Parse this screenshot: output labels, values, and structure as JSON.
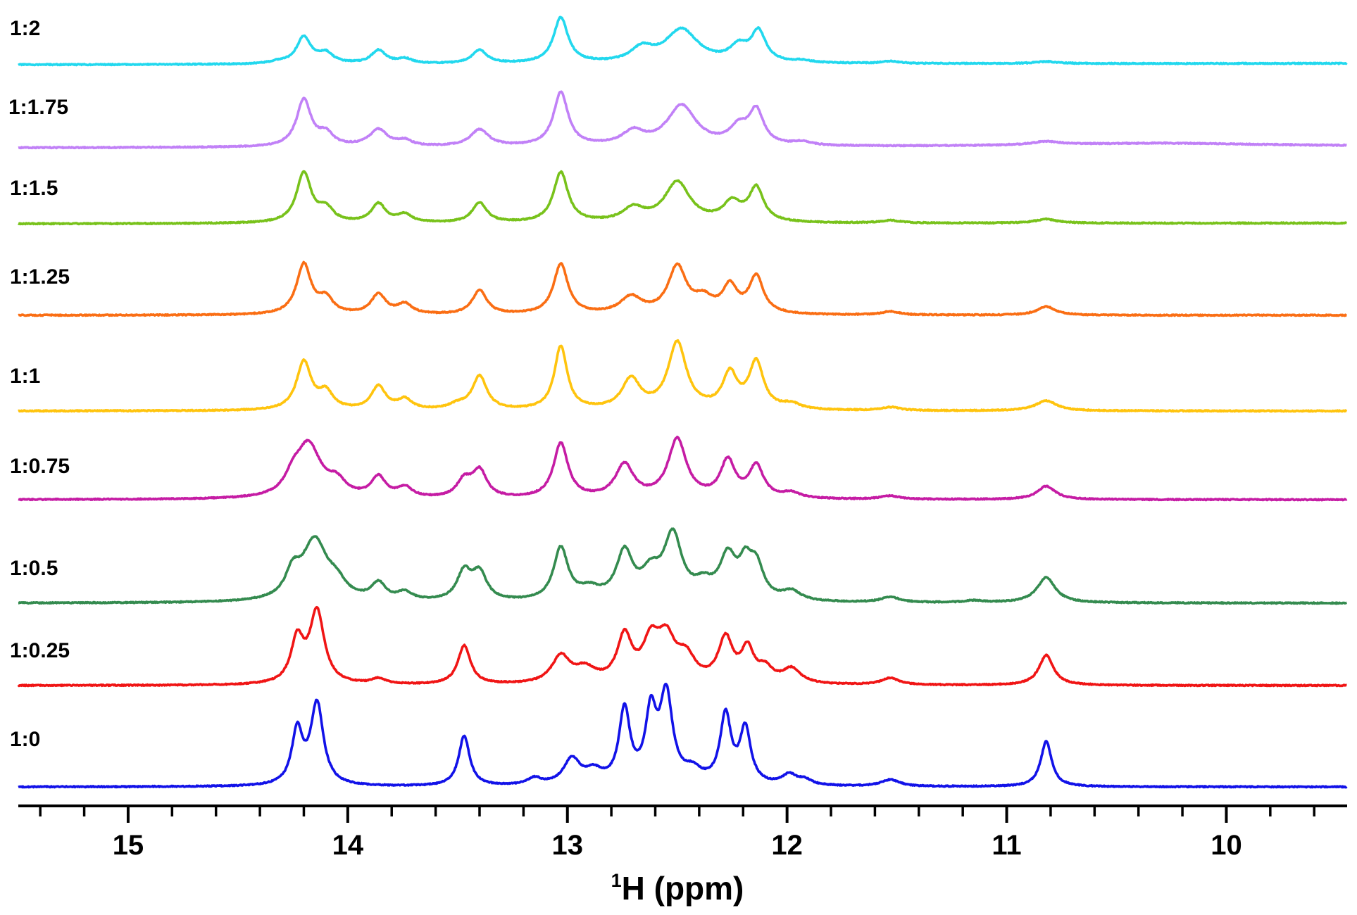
{
  "chart_data": {
    "type": "line",
    "title": "",
    "xlabel_sup": "1",
    "xlabel_rest": "H (ppm)",
    "xlim": [
      15.5,
      9.45
    ],
    "x_reversed": true,
    "major_ticks": [
      15,
      14,
      13,
      12,
      11,
      10
    ],
    "tick_labels": [
      "15",
      "14",
      "13",
      "12",
      "11",
      "10"
    ],
    "minor_ticks": [
      15.4,
      15.2,
      14.8,
      14.6,
      14.4,
      14.2,
      13.8,
      13.6,
      13.4,
      13.2,
      12.8,
      12.6,
      12.4,
      12.2,
      11.8,
      11.6,
      11.4,
      11.2,
      10.8,
      10.6,
      10.4,
      10.2,
      9.8,
      9.6
    ],
    "series": [
      {
        "name": "1:2",
        "color": "#22d8ee",
        "baseline": [
          0.0,
          2.0
        ],
        "peaks": [
          [
            14.32,
            0.04,
            3
          ],
          [
            14.2,
            0.04,
            40
          ],
          [
            14.1,
            0.04,
            15
          ],
          [
            13.86,
            0.04,
            20
          ],
          [
            13.74,
            0.04,
            7
          ],
          [
            13.4,
            0.04,
            20
          ],
          [
            13.03,
            0.04,
            68
          ],
          [
            12.66,
            0.06,
            20
          ],
          [
            12.48,
            0.09,
            50
          ],
          [
            12.22,
            0.05,
            22
          ],
          [
            12.13,
            0.04,
            45
          ],
          [
            11.93,
            0.05,
            3
          ],
          [
            11.53,
            0.05,
            3
          ],
          [
            10.82,
            0.06,
            3
          ]
        ]
      },
      {
        "name": "1:1.75",
        "color": "#c181f7",
        "baseline": [
          0.0,
          2.0
        ],
        "peaks": [
          [
            14.2,
            0.04,
            70
          ],
          [
            14.1,
            0.04,
            18
          ],
          [
            13.86,
            0.05,
            25
          ],
          [
            13.74,
            0.04,
            8
          ],
          [
            13.4,
            0.05,
            25
          ],
          [
            13.03,
            0.04,
            80
          ],
          [
            12.7,
            0.06,
            20
          ],
          [
            12.48,
            0.08,
            60
          ],
          [
            12.22,
            0.05,
            25
          ],
          [
            12.14,
            0.04,
            50
          ],
          [
            11.93,
            0.05,
            5
          ],
          [
            10.82,
            0.08,
            5
          ],
          [
            10.3,
            0.6,
            5
          ]
        ]
      },
      {
        "name": "1:1.5",
        "color": "#78c21b",
        "baseline": [
          0.0,
          1.0
        ],
        "peaks": [
          [
            14.2,
            0.04,
            75
          ],
          [
            14.1,
            0.04,
            20
          ],
          [
            13.86,
            0.04,
            28
          ],
          [
            13.74,
            0.04,
            12
          ],
          [
            13.4,
            0.04,
            30
          ],
          [
            13.03,
            0.04,
            75
          ],
          [
            12.7,
            0.06,
            20
          ],
          [
            12.5,
            0.07,
            60
          ],
          [
            12.25,
            0.05,
            28
          ],
          [
            12.14,
            0.04,
            50
          ],
          [
            11.53,
            0.05,
            4
          ],
          [
            10.82,
            0.06,
            6
          ]
        ]
      },
      {
        "name": "1:1.25",
        "color": "#fa6e14",
        "baseline": [
          0.0,
          0.0
        ],
        "peaks": [
          [
            14.2,
            0.04,
            75
          ],
          [
            14.1,
            0.04,
            22
          ],
          [
            13.86,
            0.04,
            30
          ],
          [
            13.74,
            0.04,
            15
          ],
          [
            13.4,
            0.04,
            36
          ],
          [
            13.03,
            0.04,
            75
          ],
          [
            12.71,
            0.06,
            25
          ],
          [
            12.5,
            0.05,
            70
          ],
          [
            12.38,
            0.05,
            20
          ],
          [
            12.26,
            0.04,
            40
          ],
          [
            12.14,
            0.04,
            55
          ],
          [
            11.53,
            0.05,
            5
          ],
          [
            10.82,
            0.05,
            13
          ]
        ]
      },
      {
        "name": "1:1",
        "color": "#ffc40e",
        "baseline": [
          0.0,
          0.0
        ],
        "peaks": [
          [
            14.2,
            0.04,
            72
          ],
          [
            14.1,
            0.04,
            25
          ],
          [
            13.86,
            0.04,
            35
          ],
          [
            13.74,
            0.04,
            15
          ],
          [
            13.5,
            0.05,
            7
          ],
          [
            13.4,
            0.04,
            50
          ],
          [
            13.03,
            0.035,
            95
          ],
          [
            12.71,
            0.05,
            45
          ],
          [
            12.5,
            0.05,
            100
          ],
          [
            12.26,
            0.04,
            52
          ],
          [
            12.14,
            0.04,
            70
          ],
          [
            11.98,
            0.05,
            8
          ],
          [
            11.53,
            0.05,
            5
          ],
          [
            10.82,
            0.06,
            15
          ]
        ]
      },
      {
        "name": "1:0.75",
        "color": "#c51ca4",
        "baseline": [
          0.0,
          0.0
        ],
        "peaks": [
          [
            14.25,
            0.04,
            20
          ],
          [
            14.18,
            0.07,
            80
          ],
          [
            14.05,
            0.05,
            20
          ],
          [
            13.86,
            0.04,
            30
          ],
          [
            13.74,
            0.04,
            15
          ],
          [
            13.47,
            0.04,
            25
          ],
          [
            13.4,
            0.04,
            40
          ],
          [
            13.03,
            0.04,
            82
          ],
          [
            12.74,
            0.05,
            50
          ],
          [
            12.5,
            0.05,
            88
          ],
          [
            12.27,
            0.04,
            55
          ],
          [
            12.14,
            0.04,
            48
          ],
          [
            11.98,
            0.05,
            8
          ],
          [
            11.53,
            0.05,
            5
          ],
          [
            10.82,
            0.05,
            20
          ]
        ]
      },
      {
        "name": "1:0.5",
        "color": "#348b4f",
        "baseline": [
          0.0,
          0.0
        ],
        "peaks": [
          [
            14.25,
            0.04,
            35
          ],
          [
            14.15,
            0.07,
            90
          ],
          [
            14.05,
            0.05,
            20
          ],
          [
            13.86,
            0.04,
            25
          ],
          [
            13.74,
            0.04,
            12
          ],
          [
            13.47,
            0.04,
            42
          ],
          [
            13.4,
            0.04,
            40
          ],
          [
            13.03,
            0.04,
            78
          ],
          [
            12.9,
            0.06,
            15
          ],
          [
            12.74,
            0.045,
            70
          ],
          [
            12.62,
            0.05,
            35
          ],
          [
            12.52,
            0.05,
            95
          ],
          [
            12.38,
            0.05,
            20
          ],
          [
            12.27,
            0.045,
            62
          ],
          [
            12.19,
            0.035,
            45
          ],
          [
            12.14,
            0.04,
            48
          ],
          [
            11.98,
            0.05,
            14
          ],
          [
            11.53,
            0.05,
            8
          ],
          [
            11.15,
            0.05,
            3
          ],
          [
            10.82,
            0.05,
            38
          ]
        ]
      },
      {
        "name": "1:0.25",
        "color": "#f01515",
        "baseline": [
          0.0,
          0.0
        ],
        "peaks": [
          [
            14.23,
            0.035,
            65
          ],
          [
            14.14,
            0.04,
            108
          ],
          [
            13.86,
            0.04,
            8
          ],
          [
            13.47,
            0.035,
            58
          ],
          [
            13.03,
            0.05,
            40
          ],
          [
            12.92,
            0.06,
            20
          ],
          [
            12.74,
            0.04,
            68
          ],
          [
            12.62,
            0.045,
            55
          ],
          [
            12.55,
            0.05,
            60
          ],
          [
            12.46,
            0.05,
            35
          ],
          [
            12.28,
            0.04,
            65
          ],
          [
            12.18,
            0.035,
            48
          ],
          [
            12.1,
            0.04,
            20
          ],
          [
            11.98,
            0.05,
            22
          ],
          [
            11.53,
            0.05,
            10
          ],
          [
            10.82,
            0.04,
            45
          ]
        ]
      },
      {
        "name": "1:0",
        "color": "#1212e8",
        "baseline": [
          0.0,
          0.0
        ],
        "peaks": [
          [
            14.23,
            0.03,
            80
          ],
          [
            14.14,
            0.035,
            122
          ],
          [
            13.47,
            0.03,
            75
          ],
          [
            13.15,
            0.04,
            10
          ],
          [
            12.98,
            0.045,
            38
          ],
          [
            12.88,
            0.05,
            18
          ],
          [
            12.74,
            0.03,
            110
          ],
          [
            12.62,
            0.03,
            100
          ],
          [
            12.55,
            0.035,
            130
          ],
          [
            12.43,
            0.05,
            18
          ],
          [
            12.28,
            0.03,
            102
          ],
          [
            12.19,
            0.03,
            82
          ],
          [
            11.99,
            0.04,
            15
          ],
          [
            11.92,
            0.04,
            8
          ],
          [
            11.53,
            0.05,
            10
          ],
          [
            10.82,
            0.03,
            68
          ]
        ]
      }
    ]
  }
}
